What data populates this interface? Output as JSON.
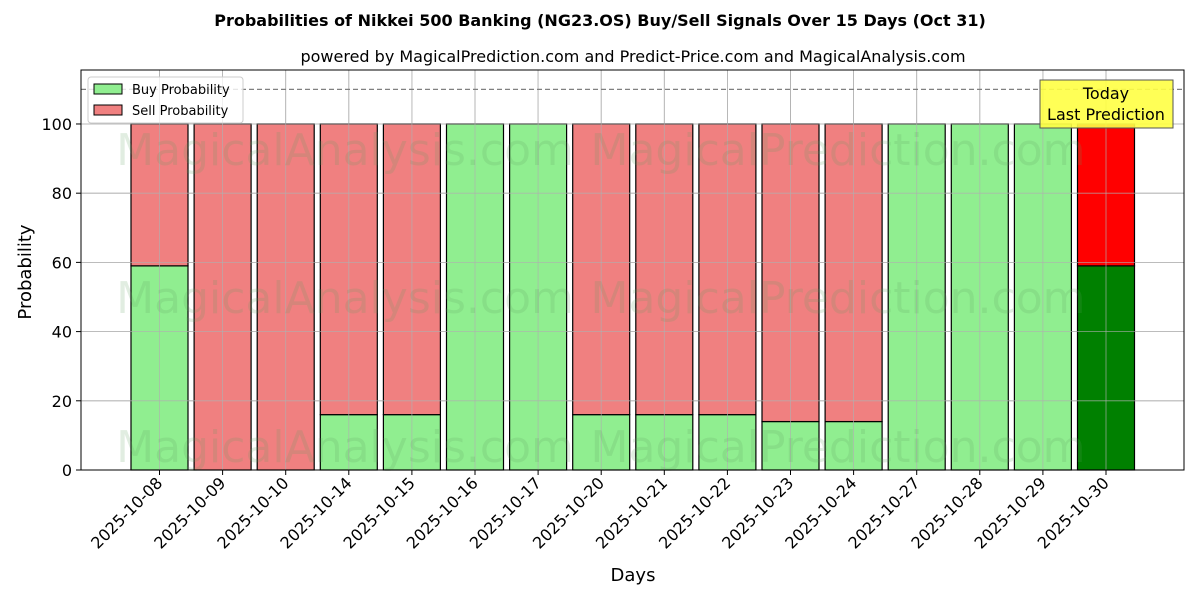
{
  "chart_data": {
    "type": "bar",
    "stacked": true,
    "title": "Probabilities of Nikkei 500 Banking (NG23.OS) Buy/Sell Signals Over 15 Days (Oct 31)",
    "subtitle": "powered by MagicalPrediction.com and Predict-Price.com and MagicalAnalysis.com",
    "xlabel": "Days",
    "ylabel": "Probability",
    "ylim": [
      0,
      115.6
    ],
    "yticks": [
      0,
      20,
      40,
      60,
      80,
      100
    ],
    "grid": true,
    "legend_position": "upper left",
    "reference_line": {
      "y": 110,
      "style": "dashed",
      "color": "#808080"
    },
    "categories": [
      "2025-10-08",
      "2025-10-09",
      "2025-10-10",
      "2025-10-14",
      "2025-10-15",
      "2025-10-16",
      "2025-10-17",
      "2025-10-20",
      "2025-10-21",
      "2025-10-22",
      "2025-10-23",
      "2025-10-24",
      "2025-10-27",
      "2025-10-28",
      "2025-10-29",
      "2025-10-30"
    ],
    "series": [
      {
        "name": "Buy Probability",
        "color": "#90EE90",
        "values": [
          59,
          0,
          0,
          16,
          16,
          100,
          100,
          16,
          16,
          16,
          14,
          14,
          100,
          100,
          100,
          59
        ]
      },
      {
        "name": "Sell Probability",
        "color": "#F08080",
        "values": [
          41,
          100,
          100,
          84,
          84,
          0,
          0,
          84,
          84,
          84,
          86,
          86,
          0,
          0,
          0,
          41
        ]
      }
    ],
    "highlight": {
      "index": 15,
      "buy_color": "#008000",
      "sell_color": "#FF0000"
    },
    "annotation": {
      "text_line1": "Today",
      "text_line2": "Last Prediction",
      "bg": "#FFFF44"
    },
    "watermarks": [
      "MagicalAnalysis.com",
      "MagicalPrediction.com"
    ]
  }
}
